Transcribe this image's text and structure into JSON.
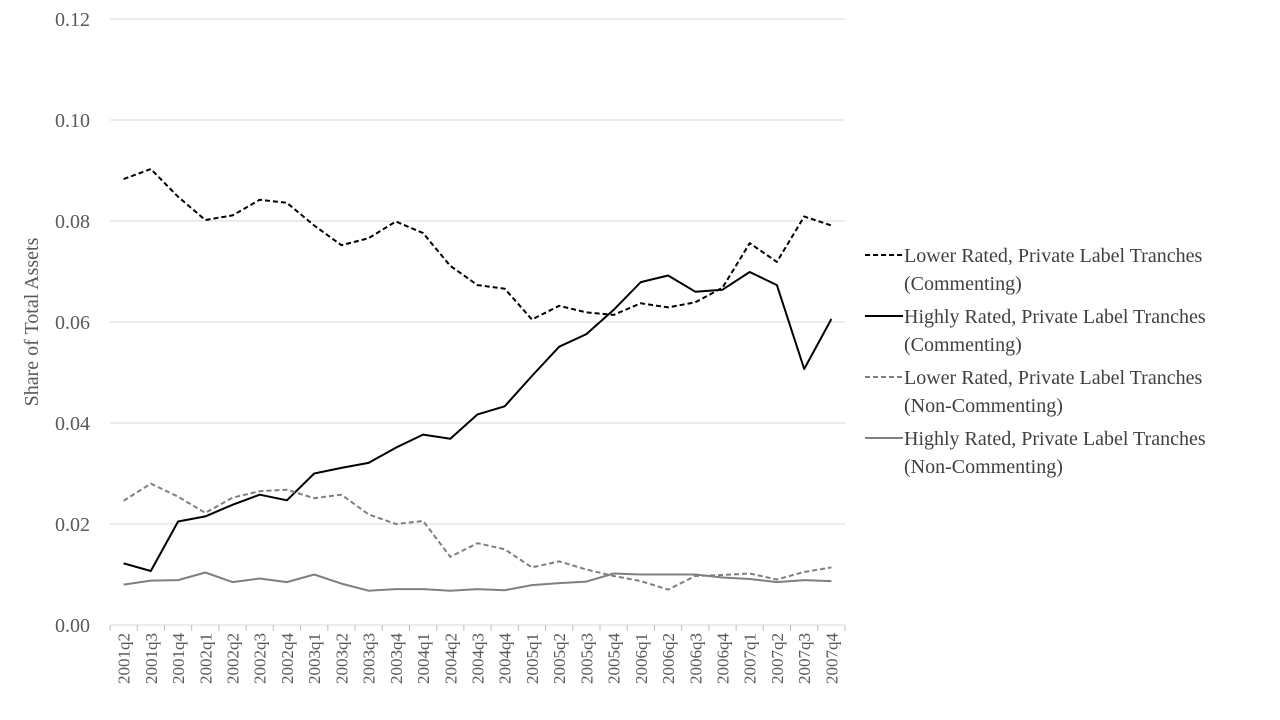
{
  "chart_data": {
    "type": "line",
    "ylabel": "Share of Total Assets",
    "xlabel": "",
    "ylim": [
      0,
      0.12
    ],
    "yticks": [
      "0.00",
      "0.02",
      "0.04",
      "0.06",
      "0.08",
      "0.10",
      "0.12"
    ],
    "grid": true,
    "legend_position": "right",
    "categories": [
      "2001q2",
      "2001q3",
      "2001q4",
      "2002q1",
      "2002q2",
      "2002q3",
      "2002q4",
      "2003q1",
      "2003q2",
      "2003q3",
      "2003q4",
      "2004q1",
      "2004q2",
      "2004q3",
      "2004q4",
      "2005q1",
      "2005q2",
      "2005q3",
      "2005q4",
      "2006q1",
      "2006q2",
      "2006q3",
      "2006q4",
      "2007q1",
      "2007q2",
      "2007q3",
      "2007q4"
    ],
    "series": [
      {
        "name": "Lower Rated, Private Label Tranches (Commenting)",
        "legend_lines": [
          "Lower Rated, Private Label Tranches",
          "(Commenting)"
        ],
        "color": "#000000",
        "dash": "dashed",
        "values": [
          0.0883,
          0.0903,
          0.0848,
          0.0802,
          0.0811,
          0.0842,
          0.0836,
          0.0791,
          0.0752,
          0.0766,
          0.0799,
          0.0776,
          0.0711,
          0.0673,
          0.0666,
          0.0605,
          0.0632,
          0.0619,
          0.0614,
          0.0637,
          0.0629,
          0.0639,
          0.0668,
          0.0756,
          0.0719,
          0.0809,
          0.0791
        ]
      },
      {
        "name": "Highly Rated, Private Label Tranches (Commenting)",
        "legend_lines": [
          "Highly Rated, Private Label Tranches",
          "(Commenting)"
        ],
        "color": "#000000",
        "dash": "solid",
        "values": [
          0.0122,
          0.0107,
          0.0205,
          0.0215,
          0.0238,
          0.0258,
          0.0247,
          0.03,
          0.0311,
          0.0321,
          0.0351,
          0.0377,
          0.0369,
          0.0417,
          0.0433,
          0.0493,
          0.0551,
          0.0576,
          0.0624,
          0.0679,
          0.0692,
          0.066,
          0.0664,
          0.0699,
          0.0673,
          0.0507,
          0.0606
        ]
      },
      {
        "name": "Lower Rated, Private Label Tranches (Non-Commenting)",
        "legend_lines": [
          "Lower Rated, Private Label Tranches",
          "(Non-Commenting)"
        ],
        "color": "#7f7f7f",
        "dash": "dashed",
        "values": [
          0.0246,
          0.028,
          0.0254,
          0.0222,
          0.0252,
          0.0265,
          0.0268,
          0.0251,
          0.0258,
          0.0219,
          0.02,
          0.0206,
          0.0135,
          0.0162,
          0.015,
          0.0114,
          0.0126,
          0.011,
          0.0097,
          0.0087,
          0.007,
          0.0097,
          0.0099,
          0.0102,
          0.009,
          0.0105,
          0.0114
        ]
      },
      {
        "name": "Highly Rated, Private Label Tranches (Non-Commenting)",
        "legend_lines": [
          "Highly Rated, Private Label Tranches",
          "(Non-Commenting)"
        ],
        "color": "#7f7f7f",
        "dash": "solid",
        "values": [
          0.008,
          0.0088,
          0.0089,
          0.0104,
          0.0085,
          0.0092,
          0.0085,
          0.01,
          0.0082,
          0.0068,
          0.0071,
          0.0071,
          0.0068,
          0.0071,
          0.0069,
          0.0079,
          0.0083,
          0.0086,
          0.0102,
          0.01,
          0.01,
          0.01,
          0.0094,
          0.0091,
          0.0085,
          0.0089,
          0.0087
        ]
      }
    ]
  }
}
